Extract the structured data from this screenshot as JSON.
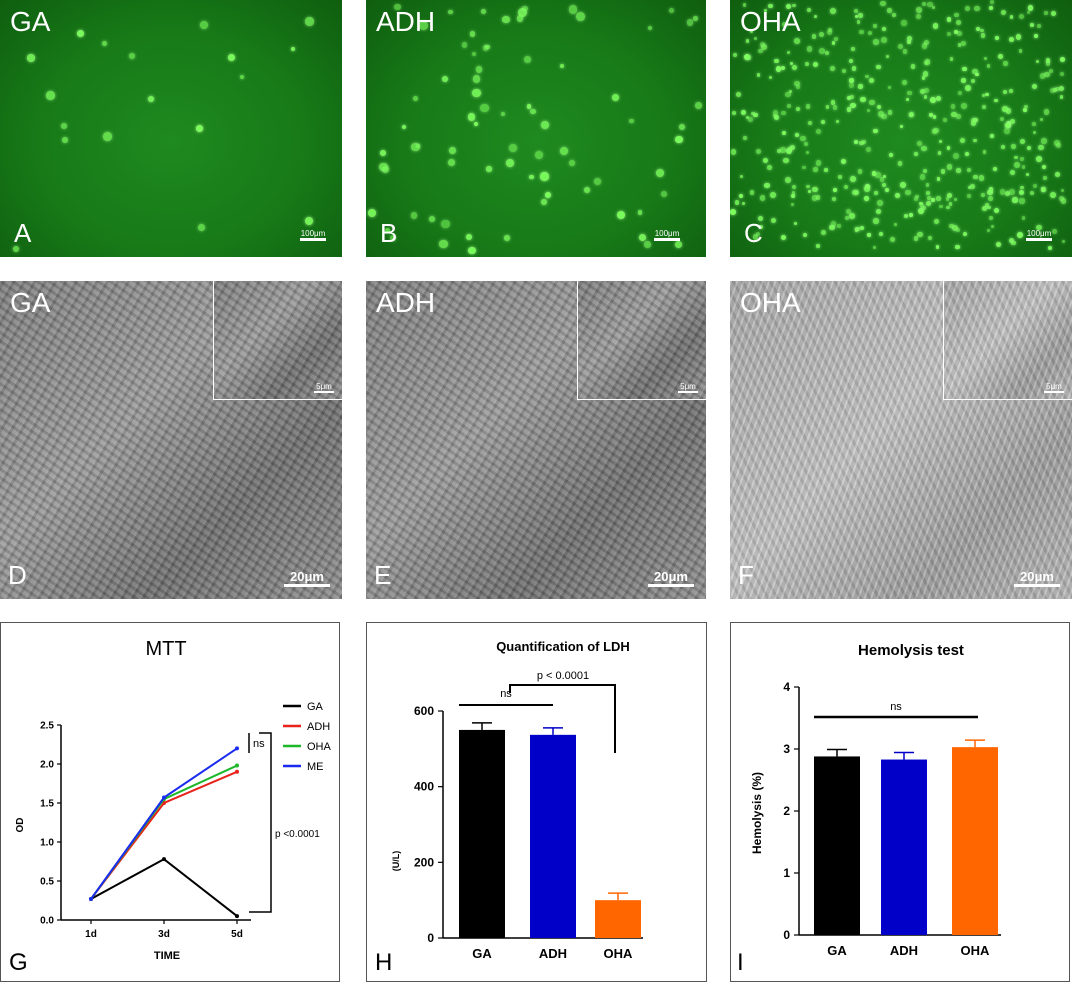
{
  "fluorescence": [
    {
      "group": "GA",
      "letter": "A",
      "scale": "100μm",
      "cells": 18
    },
    {
      "group": "ADH",
      "letter": "B",
      "scale": "100μm",
      "cells": 75
    },
    {
      "group": "OHA",
      "letter": "C",
      "scale": "100μm",
      "cells": 420
    }
  ],
  "sem": [
    {
      "group": "GA",
      "letter": "D",
      "scale": "20μm",
      "inset_scale": "5μm"
    },
    {
      "group": "ADH",
      "letter": "E",
      "scale": "20μm",
      "inset_scale": "5μm"
    },
    {
      "group": "OHA",
      "letter": "F",
      "scale": "20μm",
      "inset_scale": "5μm"
    }
  ],
  "panel_letters": {
    "g": "G",
    "h": "H",
    "i": "I"
  },
  "chart_data": [
    {
      "type": "line",
      "title": "MTT",
      "xlabel": "TIME",
      "ylabel": "OD",
      "categories": [
        "1d",
        "3d",
        "5d"
      ],
      "ylim": [
        0,
        2.5
      ],
      "yticks": [
        "0.0",
        "0.5",
        "1.0",
        "1.5",
        "2.0",
        "2.5"
      ],
      "series": [
        {
          "name": "GA",
          "values": [
            0.27,
            0.78,
            0.05
          ],
          "color": "#000000"
        },
        {
          "name": "ADH",
          "values": [
            0.27,
            1.5,
            1.9
          ],
          "color": "#e8231c"
        },
        {
          "name": "OHA",
          "values": [
            0.27,
            1.55,
            1.98
          ],
          "color": "#1cb82a"
        },
        {
          "name": "ME",
          "values": [
            0.27,
            1.57,
            2.2
          ],
          "color": "#1a2bf0"
        }
      ],
      "annotations": [
        "ns",
        "p <0.0001"
      ],
      "legend": "right"
    },
    {
      "type": "bar",
      "title": "Quantification of LDH",
      "xlabel": "",
      "ylabel": "(U/L)",
      "categories": [
        "GA",
        "ADH",
        "OHA"
      ],
      "values": [
        550,
        537,
        100
      ],
      "colors": [
        "#000000",
        "#0000c8",
        "#ff6600"
      ],
      "ylim": [
        0,
        600
      ],
      "yticks": [
        "0",
        "200",
        "400",
        "600"
      ],
      "annotations": [
        "ns",
        "p < 0.0001"
      ]
    },
    {
      "type": "bar",
      "title": "Hemolysis test",
      "xlabel": "",
      "ylabel": "Hemolysis (%)",
      "categories": [
        "GA",
        "ADH",
        "OHA"
      ],
      "values": [
        2.88,
        2.83,
        3.03
      ],
      "colors": [
        "#000000",
        "#0000c8",
        "#ff6600"
      ],
      "ylim": [
        0,
        4
      ],
      "yticks": [
        "0",
        "1",
        "2",
        "3",
        "4"
      ],
      "annotations": [
        "ns"
      ]
    }
  ]
}
